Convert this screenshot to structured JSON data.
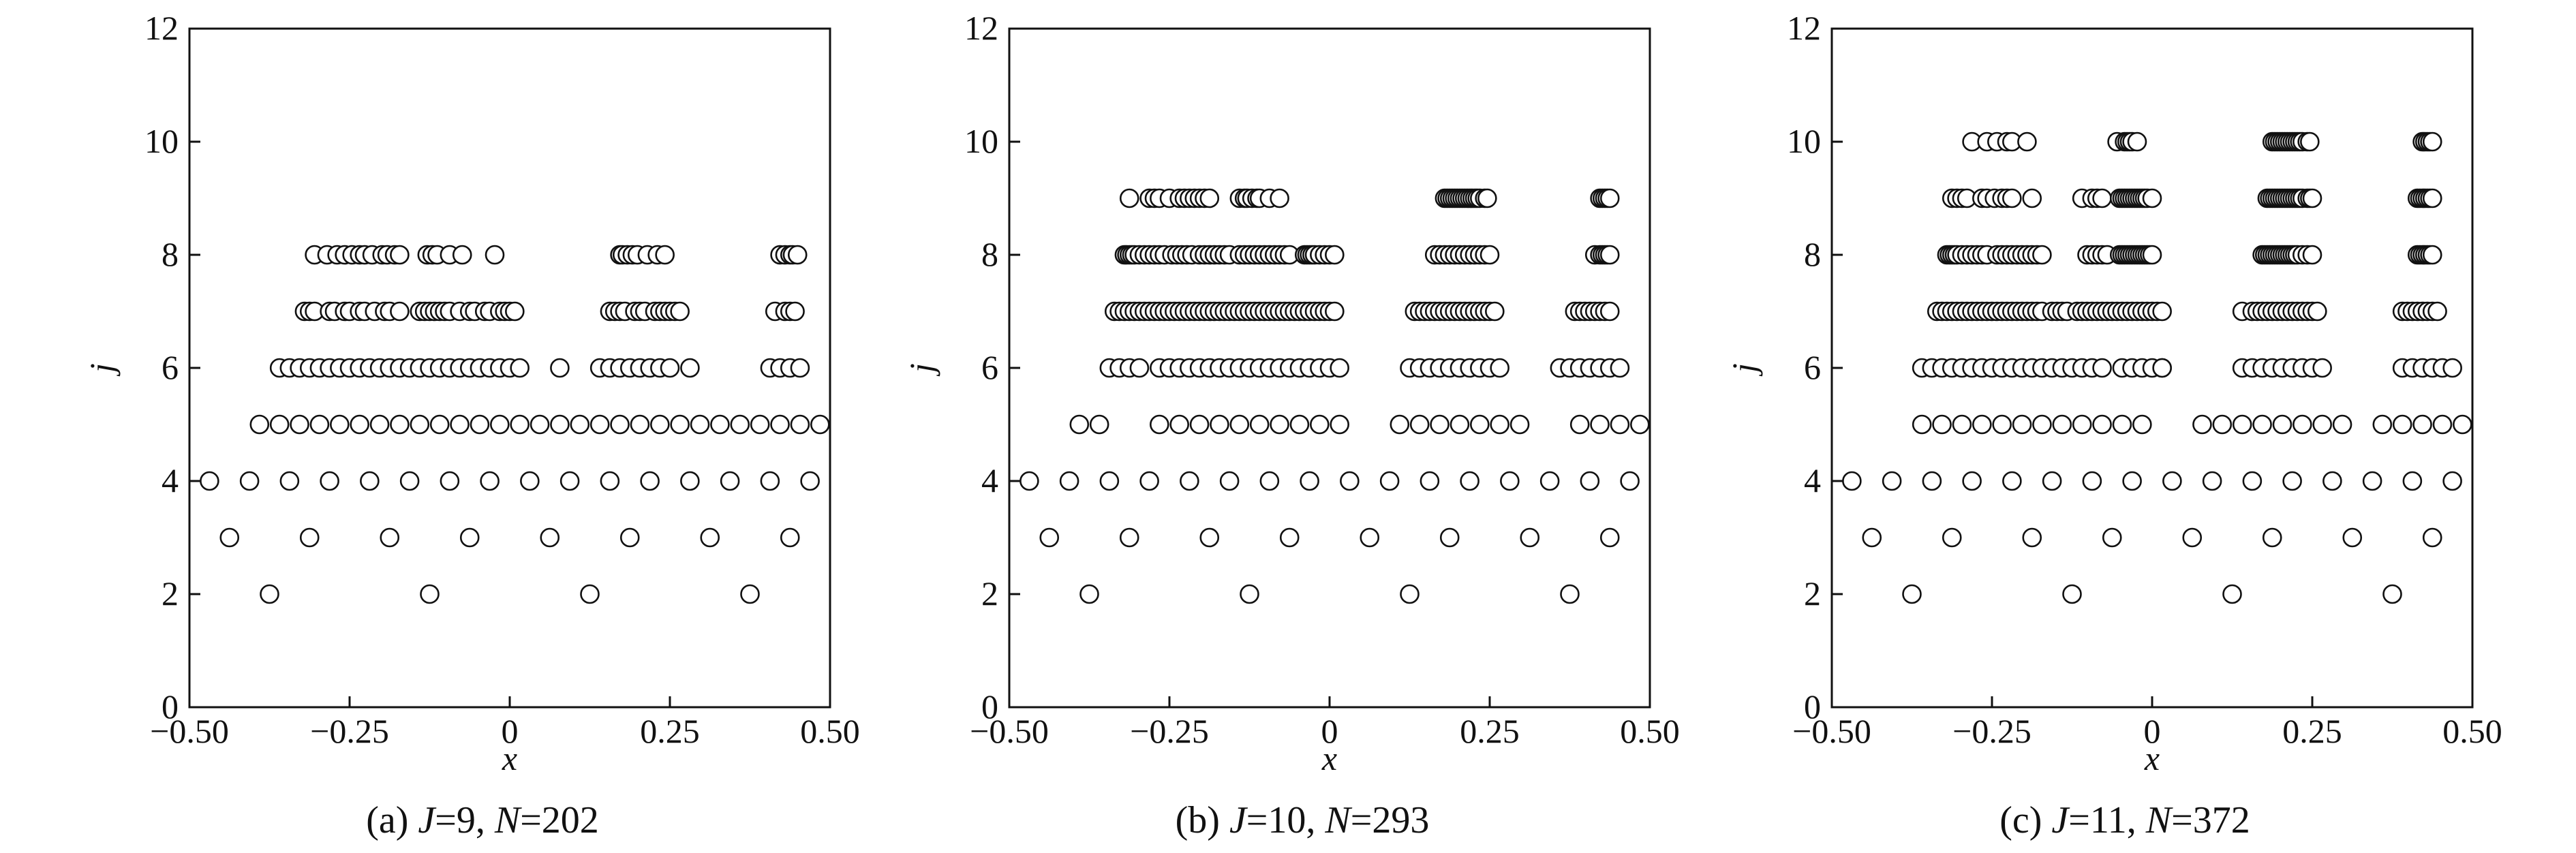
{
  "chart_data": [
    {
      "type": "scatter",
      "caption": "(a) J=9, N=202",
      "caption_parts": {
        "prefix": "(a) ",
        "J_label": "J",
        "J_value": "=9, ",
        "N_label": "N",
        "N_value": "=202"
      },
      "xlabel": "x",
      "ylabel": "j",
      "xlim": [
        -0.5,
        0.5
      ],
      "ylim": [
        0,
        12
      ],
      "xticks": [
        "−0.50",
        "−0.25",
        "0",
        "0.25",
        "0.50"
      ],
      "xtick_values": [
        -0.5,
        -0.25,
        0,
        0.25,
        0.5
      ],
      "yticks": [
        "0",
        "2",
        "4",
        "6",
        "8",
        "10",
        "12"
      ],
      "ytick_values": [
        0,
        2,
        4,
        6,
        8,
        10,
        12
      ],
      "marker": "open-circle",
      "series": [
        {
          "j": 2,
          "x": [
            -0.375,
            -0.125,
            0.125,
            0.375
          ]
        },
        {
          "j": 3,
          "x": [
            -0.4375,
            -0.3125,
            -0.1875,
            -0.0625,
            0.0625,
            0.1875,
            0.3125,
            0.4375
          ]
        },
        {
          "j": 4,
          "x": [
            -0.46875,
            -0.40625,
            -0.34375,
            -0.28125,
            -0.21875,
            -0.15625,
            -0.09375,
            -0.03125,
            0.03125,
            0.09375,
            0.15625,
            0.21875,
            0.28125,
            0.34375,
            0.40625,
            0.46875
          ]
        },
        {
          "j": 5,
          "x": [
            -0.390625,
            -0.359375,
            -0.328125,
            -0.296875,
            -0.265625,
            -0.234375,
            -0.203125,
            -0.171875,
            -0.140625,
            -0.109375,
            -0.078125,
            -0.046875,
            -0.015625,
            0.015625,
            0.046875,
            0.078125,
            0.109375,
            0.140625,
            0.171875,
            0.203125,
            0.234375,
            0.265625,
            0.296875,
            0.328125,
            0.359375,
            0.390625,
            0.421875,
            0.453125,
            0.484375
          ]
        },
        {
          "j": 6,
          "x": [
            -0.3594,
            -0.3438,
            -0.3281,
            -0.3125,
            -0.2969,
            -0.2813,
            -0.2656,
            -0.25,
            -0.2344,
            -0.2188,
            -0.2031,
            -0.1875,
            -0.1719,
            -0.1563,
            -0.1406,
            -0.125,
            -0.1094,
            -0.0938,
            -0.0781,
            -0.0625,
            -0.0469,
            -0.0313,
            -0.0156,
            0.0,
            0.0156,
            0.0781,
            0.1406,
            0.1563,
            0.1719,
            0.1875,
            0.2031,
            0.2188,
            0.2344,
            0.25,
            0.2813,
            0.4063,
            0.4219,
            0.4375,
            0.4531
          ]
        },
        {
          "j": 7,
          "x": [
            -0.3203,
            -0.3125,
            -0.3047,
            -0.2813,
            -0.2734,
            -0.2578,
            -0.25,
            -0.2344,
            -0.2266,
            -0.2109,
            -0.1953,
            -0.1875,
            -0.1719,
            -0.1406,
            -0.1328,
            -0.125,
            -0.1172,
            -0.1094,
            -0.1016,
            -0.0938,
            -0.0781,
            -0.0625,
            -0.0547,
            -0.0391,
            -0.0313,
            -0.0156,
            -0.0078,
            0.0,
            0.0078,
            0.1563,
            0.1641,
            0.1719,
            0.1797,
            0.1953,
            0.2031,
            0.2109,
            0.2266,
            0.2344,
            0.2422,
            0.25,
            0.2578,
            0.2656,
            0.4141,
            0.4297,
            0.4375,
            0.4453
          ]
        },
        {
          "j": 8,
          "x": [
            -0.3047,
            -0.2852,
            -0.2695,
            -0.2578,
            -0.2461,
            -0.2344,
            -0.2266,
            -0.2148,
            -0.1992,
            -0.1914,
            -0.1797,
            -0.1719,
            -0.1289,
            -0.1211,
            -0.1133,
            -0.0938,
            -0.0742,
            -0.0234,
            0.1719,
            0.1758,
            0.1836,
            0.1914,
            0.1992,
            0.2148,
            0.2305,
            0.2422,
            0.4219,
            0.4297,
            0.4375,
            0.4414,
            0.4492
          ]
        }
      ]
    },
    {
      "type": "scatter",
      "caption": "(b) J=10, N=293",
      "caption_parts": {
        "prefix": "(b) ",
        "J_label": "J",
        "J_value": "=10, ",
        "N_label": "N",
        "N_value": "=293"
      },
      "xlabel": "x",
      "ylabel": "j",
      "xlim": [
        -0.5,
        0.5
      ],
      "ylim": [
        0,
        12
      ],
      "xticks": [
        "−0.50",
        "−0.25",
        "0",
        "0.25",
        "0.50"
      ],
      "xtick_values": [
        -0.5,
        -0.25,
        0,
        0.25,
        0.5
      ],
      "yticks": [
        "0",
        "2",
        "4",
        "6",
        "8",
        "10",
        "12"
      ],
      "ytick_values": [
        0,
        2,
        4,
        6,
        8,
        10,
        12
      ],
      "marker": "open-circle",
      "series": [
        {
          "j": 2,
          "x": [
            -0.375,
            -0.125,
            0.125,
            0.375
          ]
        },
        {
          "j": 3,
          "x": [
            -0.4375,
            -0.3125,
            -0.1875,
            -0.0625,
            0.0625,
            0.1875,
            0.3125,
            0.4375
          ]
        },
        {
          "j": 4,
          "x": [
            -0.46875,
            -0.40625,
            -0.34375,
            -0.28125,
            -0.21875,
            -0.15625,
            -0.09375,
            -0.03125,
            0.03125,
            0.09375,
            0.15625,
            0.21875,
            0.28125,
            0.34375,
            0.40625,
            0.46875
          ]
        },
        {
          "j": 5,
          "x": [
            -0.390625,
            -0.359375,
            -0.265625,
            -0.234375,
            -0.203125,
            -0.171875,
            -0.140625,
            -0.109375,
            -0.078125,
            -0.046875,
            -0.015625,
            0.015625,
            0.109375,
            0.140625,
            0.171875,
            0.203125,
            0.234375,
            0.265625,
            0.296875,
            0.390625,
            0.421875,
            0.453125,
            0.484375
          ]
        },
        {
          "j": 6,
          "x": [
            -0.3438,
            -0.3281,
            -0.3125,
            -0.2969,
            -0.2656,
            -0.25,
            -0.2344,
            -0.2188,
            -0.2031,
            -0.1875,
            -0.1719,
            -0.1563,
            -0.1406,
            -0.125,
            -0.1094,
            -0.0938,
            -0.0781,
            -0.0625,
            -0.0469,
            -0.0313,
            -0.0156,
            0.0,
            0.0156,
            0.125,
            0.1406,
            0.1563,
            0.1719,
            0.1875,
            0.2031,
            0.2188,
            0.2344,
            0.25,
            0.2656,
            0.3594,
            0.375,
            0.3906,
            0.4063,
            0.4219,
            0.4375,
            0.4531
          ]
        },
        {
          "j": 7,
          "x": [
            -0.3359,
            -0.3281,
            -0.3203,
            -0.3125,
            -0.3047,
            -0.2969,
            -0.2891,
            -0.2813,
            -0.2734,
            -0.2656,
            -0.2578,
            -0.25,
            -0.2422,
            -0.2344,
            -0.2266,
            -0.2188,
            -0.2109,
            -0.2031,
            -0.1953,
            -0.1875,
            -0.1797,
            -0.1719,
            -0.1641,
            -0.1563,
            -0.1484,
            -0.1406,
            -0.1328,
            -0.125,
            -0.1172,
            -0.1094,
            -0.1016,
            -0.0938,
            -0.0859,
            -0.0781,
            -0.0703,
            -0.0625,
            -0.0547,
            -0.0469,
            -0.0391,
            -0.0313,
            -0.0234,
            -0.0156,
            -0.0078,
            0.0,
            0.0078,
            0.1328,
            0.1406,
            0.1484,
            0.1563,
            0.1641,
            0.1719,
            0.1797,
            0.1875,
            0.1953,
            0.2031,
            0.2109,
            0.2188,
            0.2266,
            0.2344,
            0.2422,
            0.25,
            0.2578,
            0.3828,
            0.3906,
            0.3984,
            0.4063,
            0.4141,
            0.4219,
            0.4297,
            0.4375
          ]
        },
        {
          "j": 8,
          "x": [
            -0.3203,
            -0.3164,
            -0.3125,
            -0.3086,
            -0.3047,
            -0.2969,
            -0.2891,
            -0.2813,
            -0.2734,
            -0.2656,
            -0.2578,
            -0.2461,
            -0.2383,
            -0.2305,
            -0.2227,
            -0.2148,
            -0.2031,
            -0.1953,
            -0.1875,
            -0.1797,
            -0.1719,
            -0.1641,
            -0.1563,
            -0.1406,
            -0.1328,
            -0.125,
            -0.1172,
            -0.1094,
            -0.1016,
            -0.0938,
            -0.0859,
            -0.0781,
            -0.0703,
            -0.0625,
            -0.0391,
            -0.0352,
            -0.0313,
            -0.0273,
            -0.0234,
            -0.0156,
            -0.0078,
            0.0,
            0.0078,
            0.1641,
            0.1719,
            0.1797,
            0.1875,
            0.1953,
            0.2031,
            0.2109,
            0.2188,
            0.2266,
            0.2344,
            0.2422,
            0.25,
            0.4141,
            0.4219,
            0.4258,
            0.4297,
            0.4336,
            0.4375
          ]
        },
        {
          "j": 9,
          "x": [
            -0.3125,
            -0.2813,
            -0.2734,
            -0.2656,
            -0.25,
            -0.2344,
            -0.2266,
            -0.2188,
            -0.2109,
            -0.2031,
            -0.1953,
            -0.1875,
            -0.1406,
            -0.1328,
            -0.1289,
            -0.1211,
            -0.1133,
            -0.1094,
            -0.0938,
            -0.0781,
            0.1797,
            0.1836,
            0.1875,
            0.1914,
            0.1953,
            0.1992,
            0.2031,
            0.207,
            0.2109,
            0.2148,
            0.2188,
            0.2227,
            0.2266,
            0.2305,
            0.2344,
            0.2422,
            0.2461,
            0.4219,
            0.4258,
            0.4297,
            0.4336,
            0.4375
          ]
        }
      ]
    },
    {
      "type": "scatter",
      "caption": "(c) J=11, N=372",
      "caption_parts": {
        "prefix": "(c) ",
        "J_label": "J",
        "J_value": "=11, ",
        "N_label": "N",
        "N_value": "=372"
      },
      "xlabel": "x",
      "ylabel": "j",
      "xlim": [
        -0.5,
        0.5
      ],
      "ylim": [
        0,
        12
      ],
      "xticks": [
        "−0.50",
        "−0.25",
        "0",
        "0.25",
        "0.50"
      ],
      "xtick_values": [
        -0.5,
        -0.25,
        0,
        0.25,
        0.5
      ],
      "yticks": [
        "0",
        "2",
        "4",
        "6",
        "8",
        "10",
        "12"
      ],
      "ytick_values": [
        0,
        2,
        4,
        6,
        8,
        10,
        12
      ],
      "marker": "open-circle",
      "series": [
        {
          "j": 2,
          "x": [
            -0.375,
            -0.125,
            0.125,
            0.375
          ]
        },
        {
          "j": 3,
          "x": [
            -0.4375,
            -0.3125,
            -0.1875,
            -0.0625,
            0.0625,
            0.1875,
            0.3125,
            0.4375
          ]
        },
        {
          "j": 4,
          "x": [
            -0.46875,
            -0.40625,
            -0.34375,
            -0.28125,
            -0.21875,
            -0.15625,
            -0.09375,
            -0.03125,
            0.03125,
            0.09375,
            0.15625,
            0.21875,
            0.28125,
            0.34375,
            0.40625,
            0.46875
          ]
        },
        {
          "j": 5,
          "x": [
            -0.359375,
            -0.328125,
            -0.296875,
            -0.265625,
            -0.234375,
            -0.203125,
            -0.171875,
            -0.140625,
            -0.109375,
            -0.078125,
            -0.046875,
            -0.015625,
            0.078125,
            0.109375,
            0.140625,
            0.171875,
            0.203125,
            0.234375,
            0.265625,
            0.296875,
            0.359375,
            0.390625,
            0.421875,
            0.453125,
            0.484375
          ]
        },
        {
          "j": 6,
          "x": [
            -0.3594,
            -0.3438,
            -0.3281,
            -0.3125,
            -0.2969,
            -0.2813,
            -0.2656,
            -0.25,
            -0.2344,
            -0.2188,
            -0.2031,
            -0.1875,
            -0.1719,
            -0.1563,
            -0.1406,
            -0.125,
            -0.1094,
            -0.0938,
            -0.0781,
            -0.0469,
            -0.0313,
            -0.0156,
            0.0,
            0.0156,
            0.0156,
            0.1406,
            0.1563,
            0.1719,
            0.1875,
            0.2031,
            0.2188,
            0.2344,
            0.25,
            0.2656,
            0.3906,
            0.4063,
            0.4219,
            0.4375,
            0.4531,
            0.4688
          ]
        },
        {
          "j": 7,
          "x": [
            -0.3359,
            -0.3281,
            -0.3203,
            -0.3125,
            -0.3047,
            -0.2969,
            -0.2891,
            -0.2813,
            -0.2734,
            -0.2656,
            -0.2578,
            -0.25,
            -0.2422,
            -0.2344,
            -0.2266,
            -0.2188,
            -0.2109,
            -0.2031,
            -0.1953,
            -0.1875,
            -0.1797,
            -0.1719,
            -0.1563,
            -0.1484,
            -0.1406,
            -0.1328,
            -0.1172,
            -0.1094,
            -0.1016,
            -0.0938,
            -0.0859,
            -0.0781,
            -0.0703,
            -0.0625,
            -0.0547,
            -0.0469,
            -0.0391,
            -0.0313,
            -0.0234,
            -0.0156,
            -0.0078,
            0.0,
            0.0078,
            0.0156,
            0.1406,
            0.1563,
            0.1641,
            0.1719,
            0.1797,
            0.1875,
            0.1953,
            0.2031,
            0.2109,
            0.2188,
            0.2266,
            0.2344,
            0.2422,
            0.25,
            0.2578,
            0.3906,
            0.3984,
            0.4063,
            0.4141,
            0.4219,
            0.4297,
            0.4375,
            0.4453
          ]
        },
        {
          "j": 8,
          "x": [
            -0.3203,
            -0.3164,
            -0.3125,
            -0.3086,
            -0.3047,
            -0.2969,
            -0.2891,
            -0.2813,
            -0.2734,
            -0.2656,
            -0.2578,
            -0.2422,
            -0.2344,
            -0.2266,
            -0.2188,
            -0.2109,
            -0.2031,
            -0.1953,
            -0.1875,
            -0.1797,
            -0.1719,
            -0.1016,
            -0.0938,
            -0.0859,
            -0.0781,
            -0.0703,
            -0.0508,
            -0.0469,
            -0.043,
            -0.0391,
            -0.0352,
            -0.0313,
            -0.0273,
            -0.0234,
            -0.0195,
            -0.0156,
            -0.0117,
            -0.0078,
            -0.0039,
            0.0,
            0.1719,
            0.1758,
            0.1797,
            0.1836,
            0.1875,
            0.1914,
            0.1953,
            0.1992,
            0.2031,
            0.207,
            0.2109,
            0.2148,
            0.2188,
            0.2227,
            0.2266,
            0.2344,
            0.2422,
            0.25,
            0.4141,
            0.418,
            0.4219,
            0.4258,
            0.4297,
            0.4336,
            0.4375
          ]
        },
        {
          "j": 9,
          "x": [
            -0.3125,
            -0.3047,
            -0.2969,
            -0.2891,
            -0.2656,
            -0.2578,
            -0.2461,
            -0.2344,
            -0.2266,
            -0.2188,
            -0.1875,
            -0.1094,
            -0.0938,
            -0.0859,
            -0.0781,
            -0.0508,
            -0.0469,
            -0.043,
            -0.0391,
            -0.0352,
            -0.0313,
            -0.0273,
            -0.0234,
            -0.0195,
            -0.0156,
            -0.0117,
            -0.0078,
            0.0,
            0.1797,
            0.1836,
            0.1875,
            0.1914,
            0.1953,
            0.1992,
            0.2031,
            0.207,
            0.2109,
            0.2148,
            0.2188,
            0.2227,
            0.2266,
            0.2305,
            0.2344,
            0.2422,
            0.2461,
            0.25,
            0.4141,
            0.418,
            0.4219,
            0.4258,
            0.4297,
            0.4336,
            0.4375
          ]
        },
        {
          "j": 10,
          "x": [
            -0.2813,
            -0.2578,
            -0.2422,
            -0.2266,
            -0.2188,
            -0.1953,
            -0.0547,
            -0.043,
            -0.0391,
            -0.0352,
            -0.0313,
            -0.0234,
            0.1875,
            0.1914,
            0.1953,
            0.1992,
            0.2031,
            0.207,
            0.2109,
            0.2148,
            0.2188,
            0.2227,
            0.2266,
            0.2305,
            0.2344,
            0.2422,
            0.2461,
            0.4219,
            0.4258,
            0.4297,
            0.4336,
            0.4375
          ]
        }
      ]
    }
  ]
}
